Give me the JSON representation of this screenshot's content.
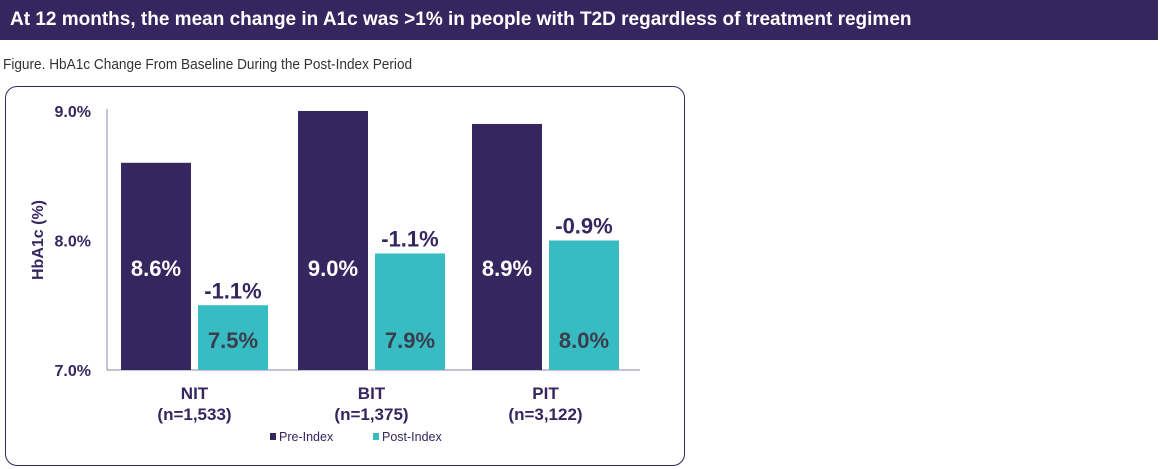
{
  "header": {
    "title": "At 12 months, the mean change in A1c was >1% in people with T2D regardless of treatment regimen"
  },
  "caption": "Figure. HbA1c Change From Baseline During the Post-Index Period",
  "colors": {
    "pre": "#352660",
    "post": "#38bcc4",
    "text": "#352660"
  },
  "chart_data": {
    "type": "bar",
    "title": "HbA1c Change From Baseline During the Post-Index Period",
    "ylabel": "HbA1c (%)",
    "xlabel": "",
    "ylim": [
      7.0,
      9.0
    ],
    "yticks": [
      "9.0%",
      "8.0%",
      "7.0%"
    ],
    "ytick_values": [
      9.0,
      8.0,
      7.0
    ],
    "categories": [
      {
        "name": "NIT",
        "n": "(n=1,533)"
      },
      {
        "name": "BIT",
        "n": "(n=1,375)"
      },
      {
        "name": "PIT",
        "n": "(n=3,122)"
      }
    ],
    "series": [
      {
        "name": "Pre-Index",
        "values": [
          8.6,
          9.0,
          8.9
        ],
        "labels": [
          "8.6%",
          "9.0%",
          "8.9%"
        ]
      },
      {
        "name": "Post-Index",
        "values": [
          7.5,
          7.9,
          8.0
        ],
        "labels": [
          "7.5%",
          "7.9%",
          "8.0%"
        ],
        "change_labels": [
          "-1.1%",
          "-1.1%",
          "-0.9%"
        ]
      }
    ],
    "legend": "bottom",
    "grid": false
  }
}
